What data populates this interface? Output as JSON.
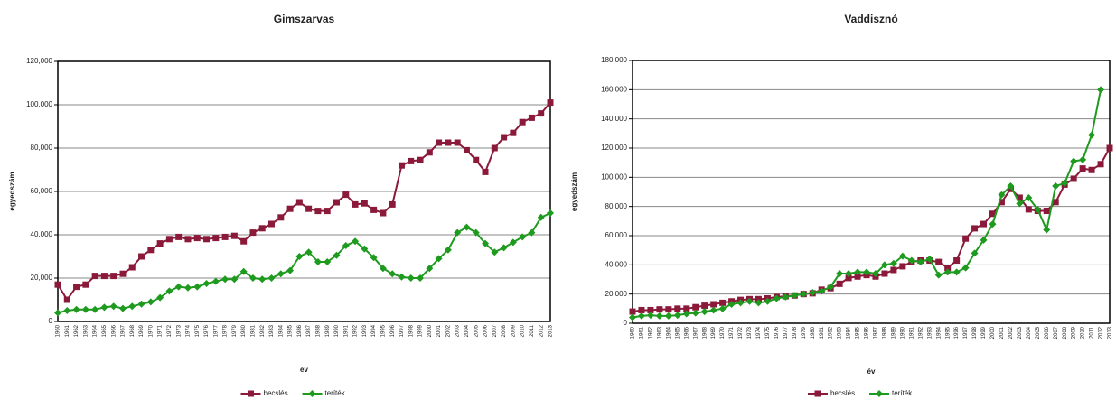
{
  "chart_data": [
    {
      "type": "line",
      "title": "Gimszarvas",
      "xlabel": "év",
      "ylabel": "egyedszám",
      "grid": true,
      "x": [
        "1960",
        "1961",
        "1962",
        "1963",
        "1964",
        "1965",
        "1966",
        "1967",
        "1968",
        "1969",
        "1970",
        "1971",
        "1972",
        "1973",
        "1974",
        "1975",
        "1976",
        "1977",
        "1978",
        "1979",
        "1980",
        "1981",
        "1982",
        "1983",
        "1984",
        "1985",
        "1986",
        "1987",
        "1988",
        "1989",
        "1990",
        "1991",
        "1992",
        "1993",
        "1994",
        "1995",
        "1996",
        "1997",
        "1998",
        "1999",
        "2000",
        "2001",
        "2002",
        "2003",
        "2004",
        "2005",
        "2006",
        "2007",
        "2008",
        "2009",
        "2010",
        "2011",
        "2012",
        "2013"
      ],
      "ylim": [
        0,
        120000
      ],
      "yticks": [
        0,
        {
          "value": 20000,
          "label": "20,000"
        },
        {
          "value": 40000,
          "label": "40,000"
        },
        {
          "value": 60000,
          "label": "60,000"
        },
        {
          "value": 80000,
          "label": "80,000"
        },
        {
          "value": 100000,
          "label": "100,000"
        },
        {
          "value": 120000,
          "label": "120,000"
        }
      ],
      "series": [
        {
          "name": "becslés",
          "color": "#8b1a3a",
          "marker": "square",
          "values": [
            17000,
            10000,
            16000,
            17000,
            21000,
            21000,
            21000,
            22000,
            25000,
            30000,
            33000,
            36000,
            38000,
            39000,
            38000,
            38500,
            38000,
            38500,
            39000,
            39500,
            37000,
            41000,
            43000,
            45000,
            48000,
            52000,
            55000,
            52000,
            51000,
            51000,
            55000,
            58500,
            54000,
            54500,
            51500,
            50000,
            54000,
            72000,
            74000,
            74500,
            78000,
            82500,
            82500,
            82500,
            79000,
            74500,
            69000,
            80000,
            85000,
            87000,
            92000,
            94000,
            96000,
            101000
          ]
        },
        {
          "name": "teríték",
          "color": "#1e9a1e",
          "marker": "diamond",
          "values": [
            4000,
            5000,
            5500,
            5500,
            5500,
            6500,
            7000,
            6000,
            7000,
            8000,
            9000,
            11000,
            14000,
            16000,
            15500,
            16000,
            17500,
            18500,
            19500,
            19500,
            23000,
            20000,
            19500,
            20000,
            22000,
            23500,
            30000,
            32000,
            27500,
            27500,
            30500,
            35000,
            37000,
            33500,
            29500,
            24500,
            22000,
            20500,
            20000,
            20000,
            24500,
            29000,
            33000,
            41000,
            43500,
            41000,
            36000,
            32000,
            34000,
            36500,
            39000,
            41000,
            48000,
            50000
          ]
        }
      ]
    },
    {
      "type": "line",
      "title": "Vaddisznó",
      "xlabel": "év",
      "ylabel": "egyedszám",
      "grid": true,
      "x": [
        "1960",
        "1961",
        "1962",
        "1963",
        "1964",
        "1965",
        "1966",
        "1967",
        "1968",
        "1969",
        "1970",
        "1971",
        "1972",
        "1973",
        "1974",
        "1975",
        "1976",
        "1977",
        "1978",
        "1979",
        "1980",
        "1981",
        "1982",
        "1983",
        "1984",
        "1985",
        "1986",
        "1987",
        "1988",
        "1989",
        "1990",
        "1991",
        "1992",
        "1993",
        "1994",
        "1995",
        "1996",
        "1997",
        "1998",
        "1999",
        "2000",
        "2001",
        "2002",
        "2003",
        "2004",
        "2005",
        "2006",
        "2007",
        "2008",
        "2009",
        "2010",
        "2011",
        "2012",
        "2013"
      ],
      "ylim": [
        0,
        180000
      ],
      "yticks": [
        0,
        {
          "value": 20000,
          "label": "20,000"
        },
        {
          "value": 40000,
          "label": "40,000"
        },
        {
          "value": 60000,
          "label": "60,000"
        },
        {
          "value": 80000,
          "label": "80,000"
        },
        {
          "value": 100000,
          "label": "100,000"
        },
        {
          "value": 120000,
          "label": "120,000"
        },
        {
          "value": 140000,
          "label": "140,000"
        },
        {
          "value": 160000,
          "label": "160,000"
        },
        {
          "value": 180000,
          "label": "180,000"
        }
      ],
      "series": [
        {
          "name": "becslés",
          "color": "#8b1a3a",
          "marker": "square",
          "values": [
            8000,
            9000,
            9000,
            9500,
            9500,
            10000,
            10000,
            11000,
            12000,
            13000,
            14000,
            15000,
            16000,
            16500,
            16500,
            17000,
            18000,
            18500,
            19000,
            20000,
            20500,
            23000,
            24000,
            27000,
            31000,
            32000,
            33000,
            32000,
            34000,
            36500,
            39000,
            42000,
            43000,
            43000,
            42000,
            38000,
            43000,
            58000,
            65000,
            68000,
            75000,
            83000,
            92000,
            86000,
            78000,
            77000,
            77000,
            83000,
            95000,
            99000,
            106000,
            105000,
            109000,
            120000
          ]
        },
        {
          "name": "teríték",
          "color": "#1e9a1e",
          "marker": "diamond",
          "values": [
            4000,
            5000,
            5500,
            5000,
            5000,
            5500,
            6500,
            7000,
            8000,
            9000,
            10000,
            13000,
            14000,
            15000,
            14000,
            15000,
            17000,
            18000,
            19000,
            20000,
            21000,
            22000,
            25000,
            34000,
            34000,
            35000,
            35000,
            34000,
            40000,
            41000,
            46000,
            43000,
            42000,
            44000,
            33000,
            35000,
            35000,
            38000,
            48000,
            57000,
            68000,
            88000,
            94000,
            82000,
            86000,
            78000,
            64000,
            94000,
            96000,
            111000,
            112000,
            129000,
            160000,
            null
          ]
        }
      ]
    }
  ]
}
